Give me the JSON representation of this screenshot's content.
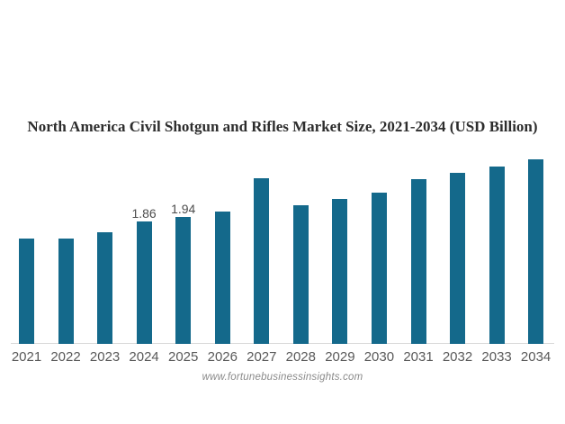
{
  "page": {
    "background": "#ffffff"
  },
  "chart_data": {
    "type": "bar",
    "title": "North America Civil Shotgun and Rifles Market Size, 2021-2034 (USD Billion)",
    "unit": "USD Billion",
    "categories": [
      "2021",
      "2022",
      "2023",
      "2024",
      "2025",
      "2026",
      "2027",
      "2028",
      "2029",
      "2030",
      "2031",
      "2032",
      "2033",
      "2034"
    ],
    "values": [
      1.61,
      1.6,
      1.7,
      1.86,
      1.94,
      2.02,
      2.52,
      2.11,
      2.21,
      2.31,
      2.51,
      2.61,
      2.71,
      2.81
    ],
    "labeled_points": [
      {
        "category": "2024",
        "label": "1.86"
      },
      {
        "category": "2025",
        "label": "1.94"
      }
    ],
    "xlabel": "",
    "ylabel": "",
    "ylim": [
      0,
      3
    ],
    "grid": false,
    "legend": false,
    "bar_color": "#14698B",
    "value_label_color": "#4d4d4d",
    "tick_label_color": "#595959",
    "axis_line_color": "#d9d9d9",
    "title_color": "#2d2d2d"
  },
  "footer": {
    "text": "www.fortunebusinessinsights.com",
    "color": "#8a8a8a"
  }
}
